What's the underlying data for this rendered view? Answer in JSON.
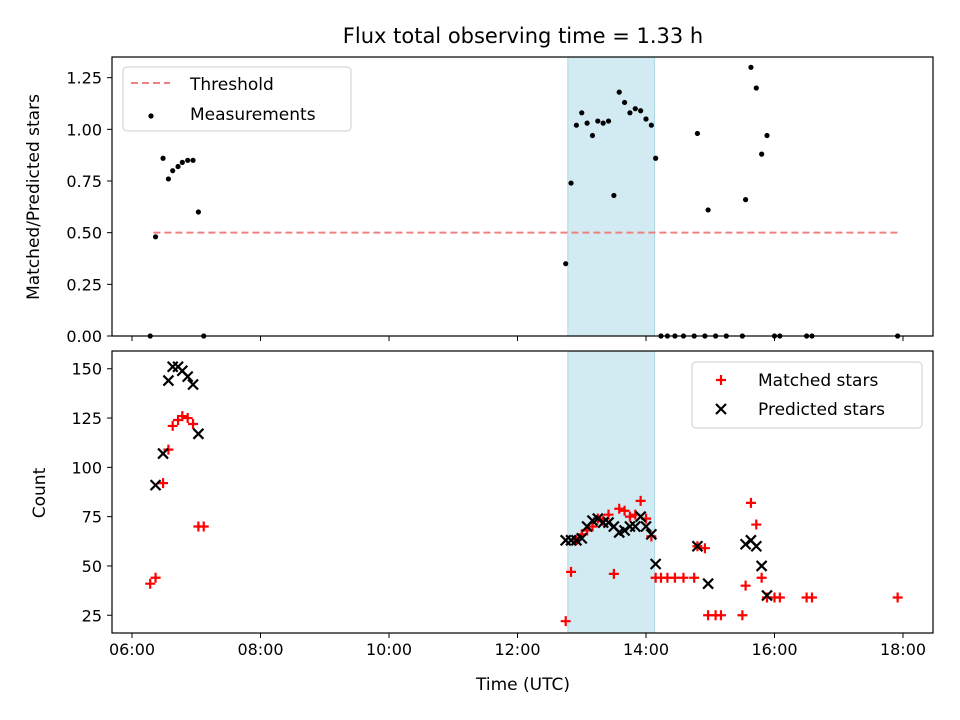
{
  "chart_data": [
    {
      "type": "scatter",
      "title": "Flux total observing time = 1.33 h",
      "xlabel": "",
      "ylabel": "Matched/Predicted stars",
      "xlim": [
        "06:00",
        "18:00"
      ],
      "ylim": [
        0,
        1.35
      ],
      "x_ticks": [
        "06:00",
        "08:00",
        "10:00",
        "12:00",
        "14:00",
        "16:00",
        "18:00"
      ],
      "y_ticks": [
        "0.00",
        "0.25",
        "0.50",
        "0.75",
        "1.00",
        "1.25"
      ],
      "highlight_span": {
        "start": "12:47",
        "end": "14:08",
        "color": "#add8e6"
      },
      "legend": {
        "position": "upper left",
        "entries": [
          "Threshold",
          "Measurements"
        ]
      },
      "series": [
        {
          "name": "Threshold",
          "kind": "dashed-line",
          "color": "#f08080",
          "x": [
            "06:20",
            "17:55"
          ],
          "y": [
            0.5,
            0.5
          ]
        },
        {
          "name": "Measurements",
          "kind": "dots",
          "color": "#000000",
          "points": [
            [
              "06:17",
              0.0
            ],
            [
              "06:22",
              0.48
            ],
            [
              "06:29",
              0.86
            ],
            [
              "06:34",
              0.76
            ],
            [
              "06:38",
              0.8
            ],
            [
              "06:43",
              0.82
            ],
            [
              "06:47",
              0.84
            ],
            [
              "06:52",
              0.85
            ],
            [
              "06:57",
              0.85
            ],
            [
              "07:02",
              0.6
            ],
            [
              "07:07",
              0.0
            ],
            [
              "12:45",
              0.35
            ],
            [
              "12:50",
              0.74
            ],
            [
              "12:55",
              1.02
            ],
            [
              "13:00",
              1.08
            ],
            [
              "13:05",
              1.03
            ],
            [
              "13:10",
              0.97
            ],
            [
              "13:15",
              1.04
            ],
            [
              "13:20",
              1.03
            ],
            [
              "13:25",
              1.04
            ],
            [
              "13:30",
              0.68
            ],
            [
              "13:35",
              1.18
            ],
            [
              "13:40",
              1.13
            ],
            [
              "13:45",
              1.08
            ],
            [
              "13:50",
              1.1
            ],
            [
              "13:55",
              1.09
            ],
            [
              "14:00",
              1.05
            ],
            [
              "14:05",
              1.02
            ],
            [
              "14:09",
              0.86
            ],
            [
              "14:14",
              0.0
            ],
            [
              "14:20",
              0.0
            ],
            [
              "14:27",
              0.0
            ],
            [
              "14:35",
              0.0
            ],
            [
              "14:45",
              0.0
            ],
            [
              "14:48",
              0.98
            ],
            [
              "14:55",
              0.0
            ],
            [
              "14:58",
              0.61
            ],
            [
              "15:05",
              0.0
            ],
            [
              "15:15",
              0.0
            ],
            [
              "15:30",
              0.0
            ],
            [
              "15:33",
              0.66
            ],
            [
              "15:38",
              1.3
            ],
            [
              "15:43",
              1.2
            ],
            [
              "15:48",
              0.88
            ],
            [
              "15:53",
              0.97
            ],
            [
              "16:00",
              0.0
            ],
            [
              "16:05",
              0.0
            ],
            [
              "16:30",
              0.0
            ],
            [
              "16:35",
              0.0
            ],
            [
              "17:55",
              0.0
            ]
          ]
        }
      ]
    },
    {
      "type": "scatter",
      "title": "",
      "xlabel": "Time (UTC)",
      "ylabel": "Count",
      "xlim": [
        "06:00",
        "18:00"
      ],
      "ylim": [
        16,
        159
      ],
      "x_ticks": [
        "06:00",
        "08:00",
        "10:00",
        "12:00",
        "14:00",
        "16:00",
        "18:00"
      ],
      "y_ticks": [
        "25",
        "50",
        "75",
        "100",
        "125",
        "150"
      ],
      "highlight_span": {
        "start": "12:47",
        "end": "14:08",
        "color": "#add8e6"
      },
      "legend": {
        "position": "upper right",
        "entries": [
          "Matched stars",
          "Predicted stars"
        ]
      },
      "series": [
        {
          "name": "Matched stars",
          "marker": "plus",
          "color": "#ff0000",
          "points": [
            [
              "06:17",
              41
            ],
            [
              "06:22",
              44
            ],
            [
              "06:29",
              92
            ],
            [
              "06:34",
              109
            ],
            [
              "06:38",
              121
            ],
            [
              "06:43",
              124
            ],
            [
              "06:47",
              126
            ],
            [
              "06:52",
              125
            ],
            [
              "06:57",
              122
            ],
            [
              "07:02",
              70
            ],
            [
              "07:07",
              70
            ],
            [
              "12:45",
              22
            ],
            [
              "12:50",
              47
            ],
            [
              "12:55",
              63
            ],
            [
              "13:00",
              66
            ],
            [
              "13:05",
              68
            ],
            [
              "13:10",
              70
            ],
            [
              "13:15",
              74
            ],
            [
              "13:20",
              73
            ],
            [
              "13:25",
              76
            ],
            [
              "13:30",
              46
            ],
            [
              "13:35",
              79
            ],
            [
              "13:40",
              78
            ],
            [
              "13:45",
              75
            ],
            [
              "13:50",
              76
            ],
            [
              "13:55",
              83
            ],
            [
              "14:00",
              74
            ],
            [
              "14:05",
              65
            ],
            [
              "14:09",
              44
            ],
            [
              "14:14",
              44
            ],
            [
              "14:20",
              44
            ],
            [
              "14:27",
              44
            ],
            [
              "14:35",
              44
            ],
            [
              "14:45",
              44
            ],
            [
              "14:48",
              60
            ],
            [
              "14:55",
              59
            ],
            [
              "14:58",
              25
            ],
            [
              "15:05",
              25
            ],
            [
              "15:10",
              25
            ],
            [
              "15:30",
              25
            ],
            [
              "15:33",
              40
            ],
            [
              "15:38",
              82
            ],
            [
              "15:43",
              71
            ],
            [
              "15:48",
              44
            ],
            [
              "15:53",
              34
            ],
            [
              "16:00",
              34
            ],
            [
              "16:05",
              34
            ],
            [
              "16:30",
              34
            ],
            [
              "16:35",
              34
            ],
            [
              "17:55",
              34
            ]
          ]
        },
        {
          "name": "Predicted stars",
          "marker": "x",
          "color": "#000000",
          "points": [
            [
              "06:22",
              91
            ],
            [
              "06:29",
              107
            ],
            [
              "06:34",
              144
            ],
            [
              "06:38",
              151
            ],
            [
              "06:43",
              151
            ],
            [
              "06:47",
              149
            ],
            [
              "06:52",
              146
            ],
            [
              "06:57",
              142
            ],
            [
              "07:02",
              117
            ],
            [
              "12:45",
              63
            ],
            [
              "12:50",
              63
            ],
            [
              "12:55",
              63
            ],
            [
              "13:00",
              64
            ],
            [
              "13:05",
              70
            ],
            [
              "13:10",
              73
            ],
            [
              "13:15",
              74
            ],
            [
              "13:20",
              72
            ],
            [
              "13:25",
              72
            ],
            [
              "13:30",
              70
            ],
            [
              "13:35",
              67
            ],
            [
              "13:40",
              68
            ],
            [
              "13:45",
              70
            ],
            [
              "13:50",
              70
            ],
            [
              "13:55",
              75
            ],
            [
              "14:00",
              70
            ],
            [
              "14:05",
              66
            ],
            [
              "14:09",
              51
            ],
            [
              "14:48",
              60
            ],
            [
              "14:58",
              41
            ],
            [
              "15:33",
              61
            ],
            [
              "15:38",
              63
            ],
            [
              "15:43",
              60
            ],
            [
              "15:48",
              50
            ],
            [
              "15:53",
              35
            ]
          ]
        }
      ]
    }
  ]
}
